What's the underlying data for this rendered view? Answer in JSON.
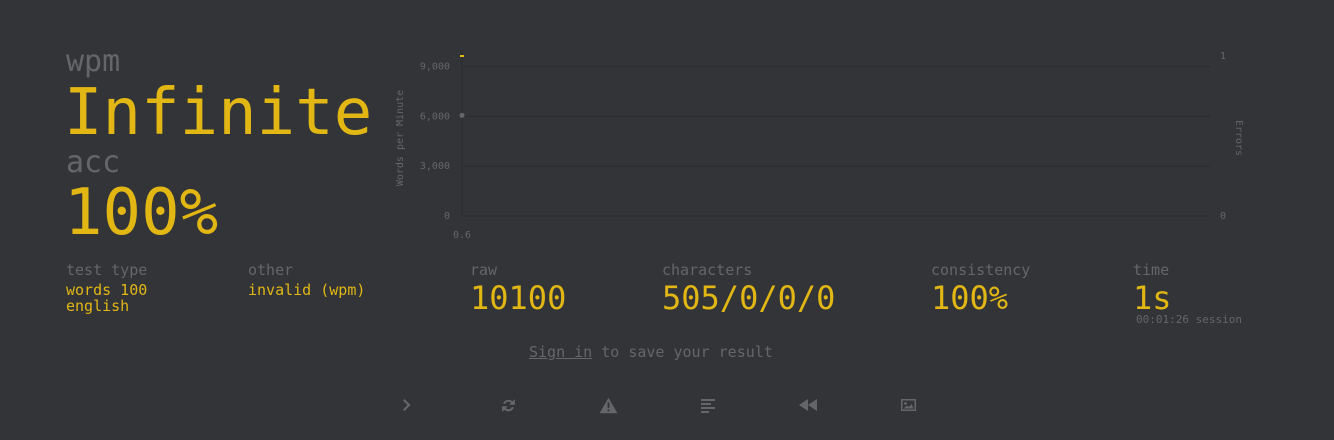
{
  "main": {
    "wpm_label": "wpm",
    "wpm_value": "Infinite",
    "acc_label": "acc",
    "acc_value": "100%"
  },
  "chart_data": {
    "type": "line",
    "ylabel": "Words per Minute",
    "y2label": "Errors",
    "yticks": [
      "0",
      "3,000",
      "6,000",
      "9,000"
    ],
    "y2ticks": [
      "0",
      "1"
    ],
    "xticks": [
      "0.6"
    ],
    "ylim": [
      0,
      10000
    ],
    "y2lim": [
      0,
      1
    ],
    "series": [
      {
        "points": [
          {
            "x": 0.6,
            "y": 6060
          },
          {
            "x": 0.6,
            "y": 10100
          }
        ]
      }
    ]
  },
  "stats": {
    "test_type_label": "test type",
    "test_type_value": "words 100\nenglish",
    "other_label": "other",
    "other_value": "invalid (wpm)",
    "raw_label": "raw",
    "raw_value": "10100",
    "characters_label": "characters",
    "characters_value": "505/0/0/0",
    "consistency_label": "consistency",
    "consistency_value": "100%",
    "time_label": "time",
    "time_value": "1s",
    "session_text": "00:01:26 session"
  },
  "signin": {
    "link": "Sign in",
    "rest": " to save your result"
  },
  "buttons": [
    {
      "name": "next-test",
      "icon": "chevron-right-icon"
    },
    {
      "name": "restart-test",
      "icon": "refresh-icon"
    },
    {
      "name": "report-quote",
      "icon": "warning-icon"
    },
    {
      "name": "word-history",
      "icon": "align-left-icon"
    },
    {
      "name": "replay",
      "icon": "backward-icon"
    },
    {
      "name": "screenshot",
      "icon": "image-icon"
    }
  ]
}
